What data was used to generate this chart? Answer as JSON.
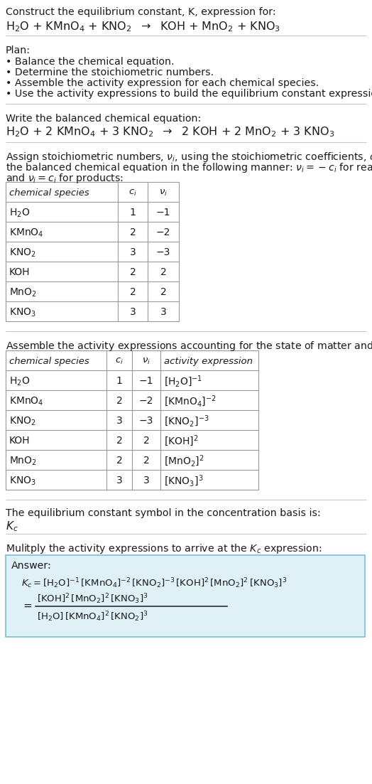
{
  "title_line1": "Construct the equilibrium constant, K, expression for:",
  "title_line2_parts": [
    "H",
    "2",
    "O + KMnO",
    "4",
    " + KNO",
    "2",
    "  →  KOH + MnO",
    "2",
    " + KNO",
    "3"
  ],
  "plan_header": "Plan:",
  "plan_items": [
    "• Balance the chemical equation.",
    "• Determine the stoichiometric numbers.",
    "• Assemble the activity expression for each chemical species.",
    "• Use the activity expressions to build the equilibrium constant expression."
  ],
  "balanced_header": "Write the balanced chemical equation:",
  "stoich_header_line1": "Assign stoichiometric numbers, $\\nu_i$, using the stoichiometric coefficients, $c_i$, from",
  "stoich_header_line2": "the balanced chemical equation in the following manner: $\\nu_i = -c_i$ for reactants",
  "stoich_header_line3": "and $\\nu_i = c_i$ for products:",
  "table1_headers": [
    "chemical species",
    "c_i",
    "v_i"
  ],
  "table1_rows": [
    [
      "H_2O",
      "1",
      "−1"
    ],
    [
      "KMnO_4",
      "2",
      "−2"
    ],
    [
      "KNO_2",
      "3",
      "−3"
    ],
    [
      "KOH",
      "2",
      "2"
    ],
    [
      "MnO_2",
      "2",
      "2"
    ],
    [
      "KNO_3",
      "3",
      "3"
    ]
  ],
  "activity_header": "Assemble the activity expressions accounting for the state of matter and $\\nu_i$:",
  "table2_headers": [
    "chemical species",
    "c_i",
    "v_i",
    "activity expression"
  ],
  "table2_rows": [
    [
      "H_2O",
      "1",
      "−1",
      "[H_2O]^{-1}"
    ],
    [
      "KMnO_4",
      "2",
      "−2",
      "[KMnO_4]^{-2}"
    ],
    [
      "KNO_2",
      "3",
      "−3",
      "[KNO_2]^{-3}"
    ],
    [
      "KOH",
      "2",
      "2",
      "[KOH]^2"
    ],
    [
      "MnO_2",
      "2",
      "2",
      "[MnO_2]^2"
    ],
    [
      "KNO_3",
      "3",
      "3",
      "[KNO_3]^3"
    ]
  ],
  "kc_header": "The equilibrium constant symbol in the concentration basis is:",
  "kc_symbol": "K_c",
  "multiply_header": "Mulitply the activity expressions to arrive at the K_c expression:",
  "answer_label": "Answer:",
  "bg_color": "#ffffff",
  "answer_box_color": "#dff0f7",
  "answer_box_border": "#7bbfd4"
}
